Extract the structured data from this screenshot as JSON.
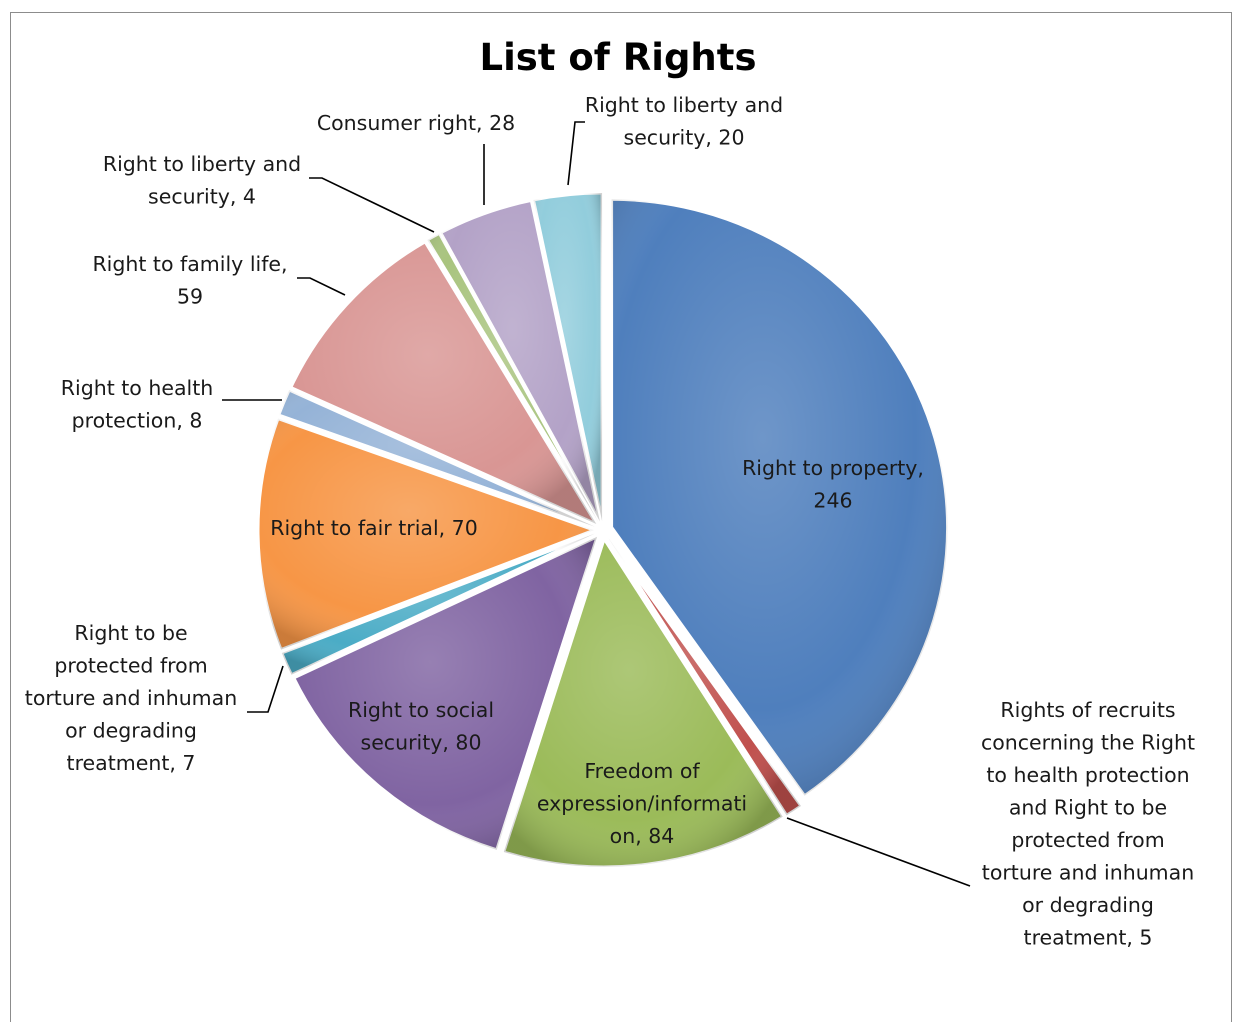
{
  "chart_data": {
    "type": "pie",
    "title": "List of Rights",
    "slices": [
      {
        "label_lines": [
          "Right to property,",
          "246"
        ],
        "value": 246,
        "color": "#4f7fbd"
      },
      {
        "label_lines": [
          "Rights of recruits",
          "concerning the Right",
          "to health protection",
          "and Right to be",
          "protected from",
          "torture and inhuman",
          "or degrading",
          "treatment, 5"
        ],
        "value": 5,
        "color": "#c0504d"
      },
      {
        "label_lines": [
          "Freedom of",
          "expression/informati",
          "on, 84"
        ],
        "value": 84,
        "color": "#9bbb59"
      },
      {
        "label_lines": [
          "Right to social",
          "security, 80"
        ],
        "value": 80,
        "color": "#8064a2"
      },
      {
        "label_lines": [
          "Right to be",
          "protected from",
          "torture and inhuman",
          "or degrading",
          "treatment, 7"
        ],
        "value": 7,
        "color": "#4bacc6"
      },
      {
        "label_lines": [
          "Right to fair trial, 70"
        ],
        "value": 70,
        "color": "#f79646"
      },
      {
        "label_lines": [
          "Right to health",
          "protection, 8"
        ],
        "value": 8,
        "color": "#95b3d7"
      },
      {
        "label_lines": [
          "Right to family life,",
          "59"
        ],
        "value": 59,
        "color": "#d99694"
      },
      {
        "label_lines": [
          "Right to liberty and",
          "security, 4"
        ],
        "value": 4,
        "color": "#a9c47f"
      },
      {
        "label_lines": [
          "Consumer right, 28"
        ],
        "value": 28,
        "color": "#b3a2c7"
      },
      {
        "label_lines": [
          "Right to liberty and",
          "security, 20"
        ],
        "value": 20,
        "color": "#92cddc"
      }
    ]
  }
}
